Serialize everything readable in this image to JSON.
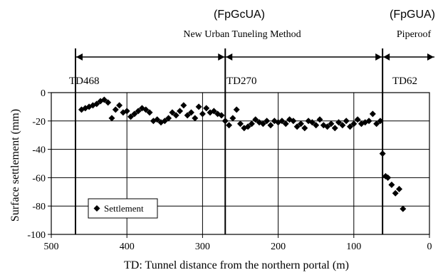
{
  "chart_data": {
    "type": "scatter",
    "xlabel": "TD: Tunnel distance from the northern portal (m)",
    "ylabel": "Surface settlement (mm)",
    "xlim": [
      500,
      0
    ],
    "ylim": [
      -100,
      0
    ],
    "x_reversed": true,
    "x_ticks": [
      "500",
      "400",
      "300",
      "200",
      "100",
      "0"
    ],
    "y_ticks": [
      "0",
      "-20",
      "-40",
      "-60",
      "-80",
      "-100"
    ],
    "grid": true,
    "legend": {
      "position": "bottom-left",
      "entries": [
        "Settlement"
      ]
    },
    "sections": [
      {
        "label": "TD468",
        "td": 468
      },
      {
        "label": "TD270",
        "td": 270
      },
      {
        "label": "TD62",
        "td": 62
      }
    ],
    "annotations": [
      {
        "code": "(FpGcUA)",
        "name": "New Urban Tuneling Method"
      },
      {
        "code": "(FpGUA)",
        "name": "Piperoof"
      }
    ],
    "series": [
      {
        "name": "Settlement",
        "color": "#000000",
        "marker": "diamond",
        "x": [
          460,
          455,
          450,
          445,
          440,
          435,
          430,
          425,
          420,
          415,
          410,
          405,
          400,
          395,
          390,
          385,
          380,
          375,
          370,
          365,
          360,
          355,
          350,
          345,
          340,
          335,
          330,
          325,
          320,
          315,
          310,
          305,
          300,
          295,
          290,
          285,
          280,
          275,
          270,
          265,
          260,
          255,
          250,
          245,
          240,
          235,
          230,
          225,
          220,
          215,
          210,
          205,
          200,
          195,
          190,
          185,
          180,
          175,
          170,
          165,
          160,
          155,
          150,
          145,
          140,
          135,
          130,
          125,
          120,
          115,
          110,
          105,
          100,
          95,
          90,
          85,
          80,
          75,
          70,
          65,
          62,
          58,
          55,
          50,
          45,
          40,
          35
        ],
        "y": [
          -12,
          -11,
          -10,
          -9,
          -8,
          -6,
          -5,
          -7,
          -18,
          -12,
          -9,
          -14,
          -13,
          -17,
          -15,
          -13,
          -11,
          -12,
          -14,
          -20,
          -19,
          -21,
          -20,
          -18,
          -14,
          -16,
          -13,
          -9,
          -16,
          -14,
          -18,
          -10,
          -15,
          -11,
          -14,
          -13,
          -15,
          -16,
          -20,
          -23,
          -18,
          -12,
          -22,
          -25,
          -24,
          -22,
          -19,
          -21,
          -22,
          -20,
          -23,
          -20,
          -21,
          -20,
          -22,
          -19,
          -20,
          -24,
          -22,
          -25,
          -20,
          -21,
          -23,
          -19,
          -23,
          -24,
          -22,
          -25,
          -21,
          -23,
          -20,
          -24,
          -22,
          -19,
          -22,
          -21,
          -20,
          -15,
          -22,
          -20,
          -43,
          -59,
          -60,
          -65,
          -71,
          -68,
          -82
        ]
      }
    ]
  }
}
